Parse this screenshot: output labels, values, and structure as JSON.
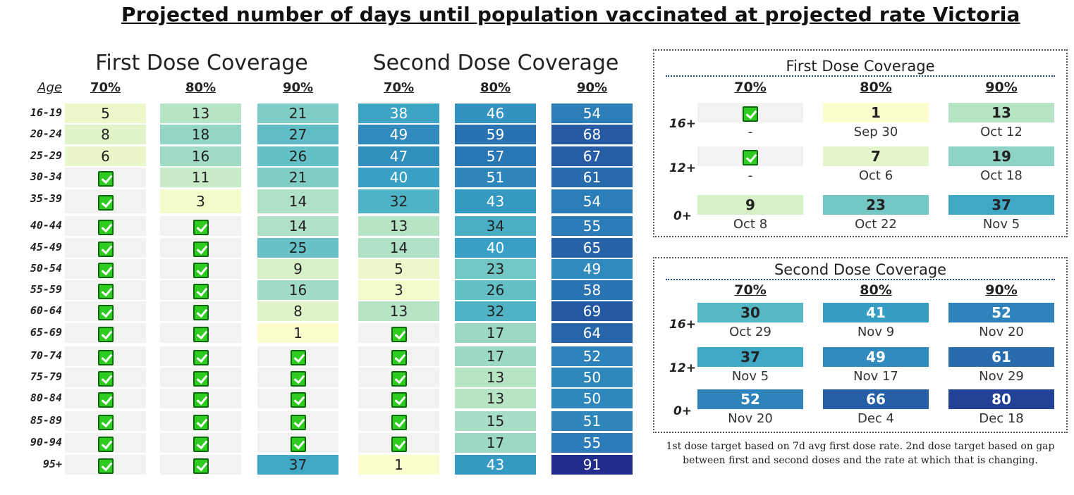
{
  "title": "Projected number of days until population vaccinated at projected rate Victoria",
  "chart_data": {
    "type": "table",
    "age_label": "Age",
    "age_groups": [
      "16-19",
      "20-24",
      "25-29",
      "30-34",
      "35-39",
      "40-44",
      "45-49",
      "50-54",
      "55-59",
      "60-64",
      "65-69",
      "70-74",
      "75-79",
      "80-84",
      "85-89",
      "90-94",
      "95+"
    ],
    "first_dose": {
      "label": "First Dose Coverage",
      "columns": [
        "70%",
        "80%",
        "90%"
      ],
      "values": [
        [
          5,
          13,
          21
        ],
        [
          8,
          18,
          27
        ],
        [
          6,
          16,
          26
        ],
        [
          null,
          11,
          21
        ],
        [
          null,
          3,
          14
        ],
        [
          null,
          null,
          14
        ],
        [
          null,
          null,
          25
        ],
        [
          null,
          null,
          9
        ],
        [
          null,
          null,
          16
        ],
        [
          null,
          null,
          8
        ],
        [
          null,
          null,
          1
        ],
        [
          null,
          null,
          null
        ],
        [
          null,
          null,
          null
        ],
        [
          null,
          null,
          null
        ],
        [
          null,
          null,
          null
        ],
        [
          null,
          null,
          null
        ],
        [
          null,
          null,
          37
        ]
      ]
    },
    "second_dose": {
      "label": "Second Dose Coverage",
      "columns": [
        "70%",
        "80%",
        "90%"
      ],
      "values": [
        [
          38,
          46,
          54
        ],
        [
          49,
          59,
          68
        ],
        [
          47,
          57,
          67
        ],
        [
          40,
          51,
          61
        ],
        [
          32,
          43,
          54
        ],
        [
          13,
          34,
          55
        ],
        [
          14,
          40,
          65
        ],
        [
          5,
          23,
          49
        ],
        [
          3,
          26,
          58
        ],
        [
          13,
          32,
          69
        ],
        [
          null,
          17,
          64
        ],
        [
          null,
          17,
          52
        ],
        [
          null,
          13,
          50
        ],
        [
          null,
          13,
          50
        ],
        [
          null,
          15,
          51
        ],
        [
          null,
          17,
          55
        ],
        [
          1,
          43,
          91
        ]
      ]
    },
    "null_meaning": "achieved (check mark)"
  },
  "summary": {
    "first": {
      "title": "First Dose Coverage",
      "columns": [
        "70%",
        "80%",
        "90%"
      ],
      "groups": [
        "16+",
        "12+",
        "0+"
      ],
      "values": [
        [
          null,
          1,
          13
        ],
        [
          null,
          7,
          19
        ],
        [
          9,
          23,
          37
        ]
      ],
      "dates": [
        [
          "-",
          "Sep 30",
          "Oct 12"
        ],
        [
          "-",
          "Oct 6",
          "Oct 18"
        ],
        [
          "Oct 8",
          "Oct 22",
          "Nov 5"
        ]
      ]
    },
    "second": {
      "title": "Second Dose Coverage",
      "columns": [
        "70%",
        "80%",
        "90%"
      ],
      "groups": [
        "16+",
        "12+",
        "0+"
      ],
      "values": [
        [
          30,
          41,
          52
        ],
        [
          37,
          49,
          61
        ],
        [
          52,
          66,
          80
        ]
      ],
      "dates": [
        [
          "Oct 29",
          "Nov 9",
          "Nov 20"
        ],
        [
          "Nov 5",
          "Nov 17",
          "Nov 29"
        ],
        [
          "Nov 20",
          "Dec 4",
          "Dec 18"
        ]
      ]
    }
  },
  "note": "1st dose target based on 7d avg first dose rate. 2nd dose target based on gap between first and second doses and the rate at which that is changing."
}
